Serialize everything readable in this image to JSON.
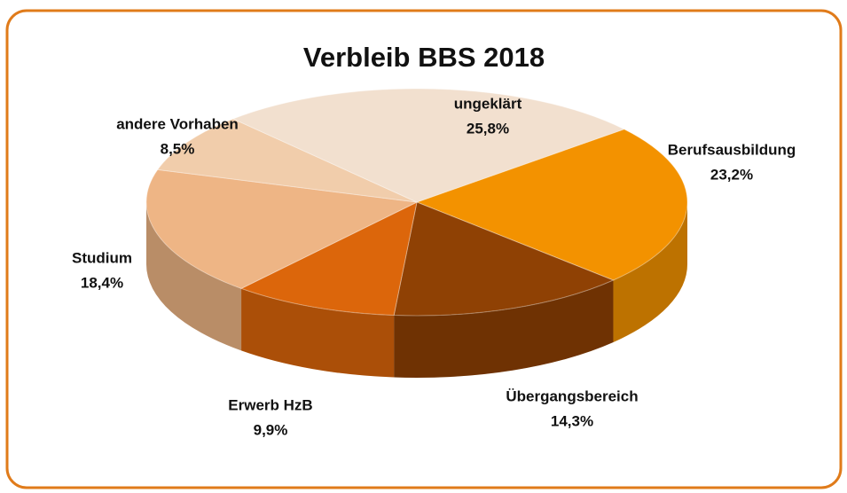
{
  "chart_data": {
    "type": "pie",
    "title": "Verbleib BBS 2018",
    "categories": [
      "Berufsausbildung",
      "Übergangsbereich",
      "Erwerb HzB",
      "Studium",
      "andere Vorhaben",
      "ungeklärt"
    ],
    "values": [
      23.2,
      14.3,
      9.9,
      18.4,
      8.5,
      25.8
    ],
    "value_labels": [
      "23,2%",
      "14,3%",
      "9,9%",
      "18,4%",
      "8,5%",
      "25,8%"
    ],
    "colors": [
      "#f39200",
      "#8f4104",
      "#dc660b",
      "#eeb585",
      "#f1cdab",
      "#f2e0cf"
    ]
  }
}
